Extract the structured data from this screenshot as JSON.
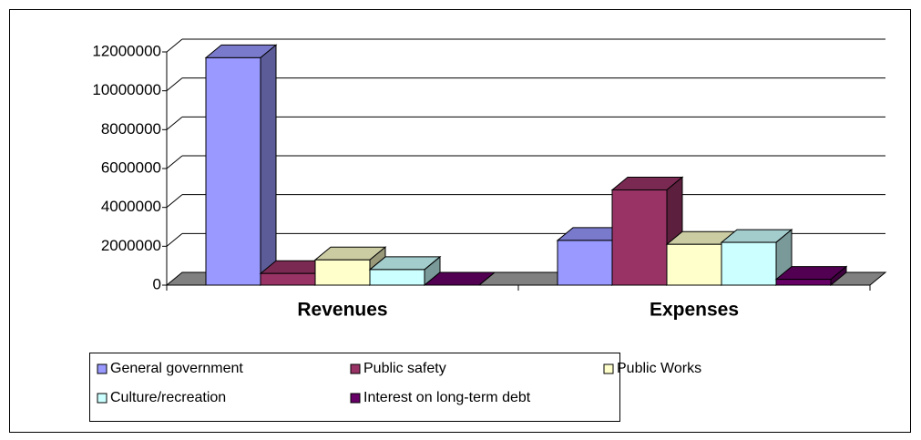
{
  "chart_data": {
    "type": "bar3d",
    "categories": [
      "Revenues",
      "Expenses"
    ],
    "series": [
      {
        "name": "General government",
        "color": "#9999ff",
        "values": [
          11700000,
          2300000
        ]
      },
      {
        "name": "Public safety",
        "color": "#993366",
        "values": [
          600000,
          4900000
        ]
      },
      {
        "name": "Public Works",
        "color": "#ffffcc",
        "values": [
          1300000,
          2100000
        ]
      },
      {
        "name": "Culture/recreation",
        "color": "#ccffff",
        "values": [
          800000,
          2200000
        ]
      },
      {
        "name": "Interest on long-term debt",
        "color": "#660066",
        "values": [
          0,
          300000
        ]
      }
    ],
    "ylim": [
      0,
      12000000
    ],
    "yticks": [
      0,
      2000000,
      4000000,
      6000000,
      8000000,
      10000000,
      12000000
    ],
    "grid": true,
    "legend": "bottom"
  }
}
